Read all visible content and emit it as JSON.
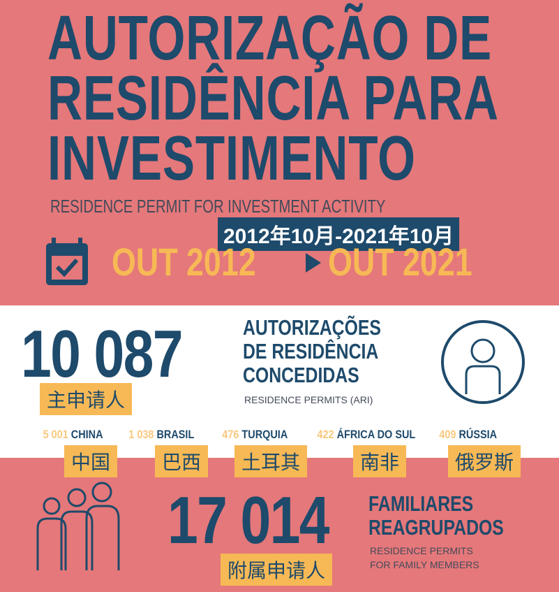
{
  "title": {
    "line1": "AUTORIZAÇÃO DE",
    "line2": "RESIDÊNCIA PARA",
    "line3": "INVESTIMENTO"
  },
  "subtitle": "RESIDENCE PERMIT FOR INVESTMENT ACTIVITY",
  "date_range_cn": "2012年10月-2021年10月",
  "period": {
    "start": "OUT 2012",
    "end": "OUT 2021"
  },
  "main": {
    "count": "10 087",
    "heading": [
      "AUTORIZAÇÕES",
      "DE RESIDÊNCIA",
      "CONCEDIDAS"
    ],
    "sub": "RESIDENCE PERMITS (ARI)",
    "tag_cn": "主申请人"
  },
  "countries": [
    {
      "count": "5 001",
      "name": "CHINA",
      "cn": "中国"
    },
    {
      "count": "1 038",
      "name": "BRASIL",
      "cn": "巴西"
    },
    {
      "count": "476",
      "name": "TURQUIA",
      "cn": "土耳其"
    },
    {
      "count": "422",
      "name": "ÁFRICA DO SUL",
      "cn": "南非"
    },
    {
      "count": "409",
      "name": "RÚSSIA",
      "cn": "俄罗斯"
    }
  ],
  "family": {
    "count": "17 014",
    "heading": [
      "FAMILIARES",
      "REAGRUPADOS"
    ],
    "sub": [
      "RESIDENCE PERMITS",
      "FOR FAMILY MEMBERS"
    ],
    "tag_cn": "附属申请人"
  },
  "colors": {
    "background": "#E5787A",
    "navy": "#1E4A6B",
    "yellow": "#F7B955"
  }
}
